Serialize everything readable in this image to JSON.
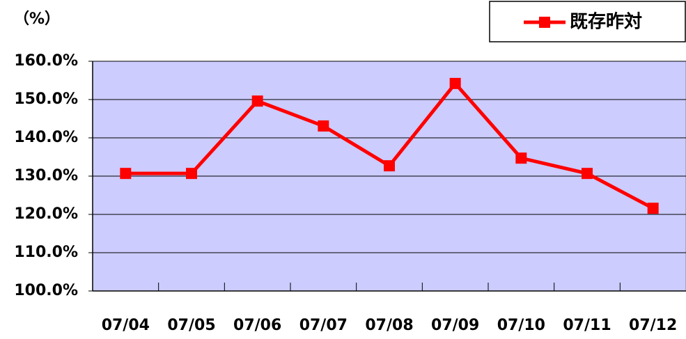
{
  "chart_data": {
    "type": "line",
    "y_label": "（%）",
    "categories": [
      "07/04",
      "07/05",
      "07/06",
      "07/07",
      "07/08",
      "07/09",
      "07/10",
      "07/11",
      "07/12"
    ],
    "series": [
      {
        "name": "既存昨対",
        "color": "#ff0000",
        "values": [
          130.7,
          130.7,
          149.6,
          143.1,
          132.7,
          154.2,
          134.7,
          130.7,
          121.6
        ]
      }
    ],
    "ylim": [
      100,
      160
    ],
    "yticks": [
      {
        "value": 100,
        "label": "100.0%"
      },
      {
        "value": 110,
        "label": "110.0%"
      },
      {
        "value": 120,
        "label": "120.0%"
      },
      {
        "value": 130,
        "label": "130.0%"
      },
      {
        "value": 140,
        "label": "140.0%"
      },
      {
        "value": 150,
        "label": "150.0%"
      },
      {
        "value": 160,
        "label": "160.0%"
      }
    ],
    "grid": true,
    "plot_background": "#ccccff",
    "legend": "top-right"
  }
}
